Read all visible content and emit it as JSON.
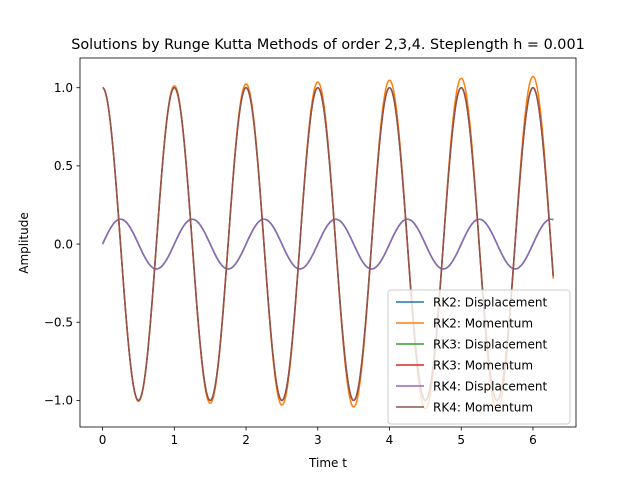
{
  "chart_data": {
    "type": "line",
    "title": "Solutions by Runge Kutta Methods of order 2,3,4. Steplength h = 0.001",
    "xlabel": "Time t",
    "ylabel": "Amplitude",
    "xlim": [
      -0.315,
      6.6
    ],
    "ylim": [
      -1.17,
      1.19
    ],
    "xticks": [
      0,
      1,
      2,
      3,
      4,
      5,
      6
    ],
    "yticks": [
      -1.0,
      -0.5,
      0.0,
      0.5,
      1.0
    ],
    "xtick_labels": [
      "0",
      "1",
      "2",
      "3",
      "4",
      "5",
      "6"
    ],
    "ytick_labels": [
      "−1.0",
      "−0.5",
      "0.0",
      "0.5",
      "1.0"
    ],
    "grid": false,
    "legend_position": "lower right",
    "t_range": [
      0,
      6.283
    ],
    "oscillation_period": 1.0,
    "series": [
      {
        "name": "RK2: Displacement",
        "color": "#1f77b4",
        "kind": "displacement",
        "amplitude": 0.159,
        "amplitude_growth": 0.0
      },
      {
        "name": "RK2: Momentum",
        "color": "#ff7f0e",
        "kind": "momentum",
        "amplitude": 1.0,
        "amplitude_growth": 0.012
      },
      {
        "name": "RK3: Displacement",
        "color": "#2ca02c",
        "kind": "displacement",
        "amplitude": 0.159,
        "amplitude_growth": 0.0
      },
      {
        "name": "RK3: Momentum",
        "color": "#d62728",
        "kind": "momentum",
        "amplitude": 1.0,
        "amplitude_growth": 0.0
      },
      {
        "name": "RK4: Displacement",
        "color": "#9467bd",
        "kind": "displacement",
        "amplitude": 0.159,
        "amplitude_growth": 0.0
      },
      {
        "name": "RK4: Momentum",
        "color": "#8c564b",
        "kind": "momentum",
        "amplitude": 1.0,
        "amplitude_growth": 0.0
      }
    ]
  }
}
